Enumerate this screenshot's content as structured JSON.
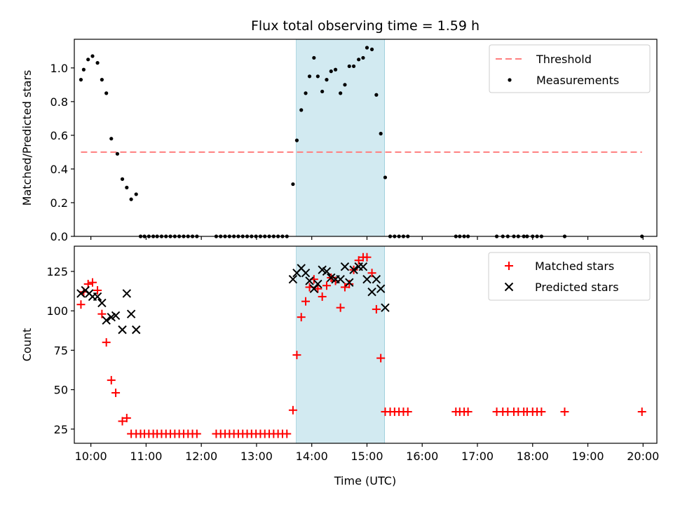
{
  "chart_data": {
    "title": "Flux total observing time = 1.59 h",
    "xlabel": "Time (UTC)",
    "x_unit": "hours UTC",
    "xlim": [
      9.7,
      20.25
    ],
    "xticks": [
      10,
      11,
      12,
      13,
      14,
      15,
      16,
      17,
      18,
      19,
      20
    ],
    "xtick_labels": [
      "10:00",
      "11:00",
      "12:00",
      "13:00",
      "14:00",
      "15:00",
      "16:00",
      "17:00",
      "18:00",
      "19:00",
      "20:00"
    ],
    "shaded_interval": {
      "x": [
        13.72,
        15.32
      ],
      "color": "#add8e6"
    },
    "panels": [
      {
        "type": "scatter",
        "ylabel": "Matched/Predicted stars",
        "ylim": [
          0,
          1.17
        ],
        "yticks": [
          0.0,
          0.2,
          0.4,
          0.6,
          0.8,
          1.0
        ],
        "ytick_labels": [
          "0.0",
          "0.2",
          "0.4",
          "0.6",
          "0.8",
          "1.0"
        ],
        "legend_position": "top-right",
        "threshold": {
          "name": "Threshold",
          "y": 0.5,
          "x": [
            9.82,
            19.98
          ],
          "color": "#ff7f7f",
          "style": "dashed"
        },
        "series": [
          {
            "name": "Measurements",
            "marker": "dot",
            "color": "#000000",
            "points": [
              [
                9.82,
                0.93
              ],
              [
                9.87,
                0.99
              ],
              [
                9.95,
                1.05
              ],
              [
                10.03,
                1.07
              ],
              [
                10.12,
                1.03
              ],
              [
                10.2,
                0.93
              ],
              [
                10.28,
                0.85
              ],
              [
                10.37,
                0.58
              ],
              [
                10.48,
                0.49
              ],
              [
                10.57,
                0.34
              ],
              [
                10.65,
                0.29
              ],
              [
                10.73,
                0.22
              ],
              [
                10.82,
                0.25
              ],
              [
                10.9,
                0.0
              ],
              [
                10.97,
                0.0
              ],
              [
                11.05,
                0.0
              ],
              [
                11.13,
                0.0
              ],
              [
                11.2,
                0.0
              ],
              [
                11.28,
                0.0
              ],
              [
                11.36,
                0.0
              ],
              [
                11.44,
                0.0
              ],
              [
                11.52,
                0.0
              ],
              [
                11.6,
                0.0
              ],
              [
                11.68,
                0.0
              ],
              [
                11.76,
                0.0
              ],
              [
                11.84,
                0.0
              ],
              [
                11.92,
                0.0
              ],
              [
                12.27,
                0.0
              ],
              [
                12.35,
                0.0
              ],
              [
                12.43,
                0.0
              ],
              [
                12.51,
                0.0
              ],
              [
                12.59,
                0.0
              ],
              [
                12.67,
                0.0
              ],
              [
                12.75,
                0.0
              ],
              [
                12.83,
                0.0
              ],
              [
                12.91,
                0.0
              ],
              [
                12.99,
                0.0
              ],
              [
                13.07,
                0.0
              ],
              [
                13.15,
                0.0
              ],
              [
                13.23,
                0.0
              ],
              [
                13.31,
                0.0
              ],
              [
                13.39,
                0.0
              ],
              [
                13.47,
                0.0
              ],
              [
                13.55,
                0.0
              ],
              [
                13.66,
                0.31
              ],
              [
                13.73,
                0.57
              ],
              [
                13.81,
                0.75
              ],
              [
                13.89,
                0.85
              ],
              [
                13.96,
                0.95
              ],
              [
                14.04,
                1.06
              ],
              [
                14.11,
                0.95
              ],
              [
                14.19,
                0.86
              ],
              [
                14.27,
                0.93
              ],
              [
                14.35,
                0.98
              ],
              [
                14.43,
                0.99
              ],
              [
                14.52,
                0.85
              ],
              [
                14.6,
                0.9
              ],
              [
                14.68,
                1.01
              ],
              [
                14.76,
                1.01
              ],
              [
                14.85,
                1.05
              ],
              [
                14.93,
                1.06
              ],
              [
                15.0,
                1.12
              ],
              [
                15.09,
                1.11
              ],
              [
                15.17,
                0.84
              ],
              [
                15.25,
                0.61
              ],
              [
                15.33,
                0.35
              ],
              [
                15.42,
                0.0
              ],
              [
                15.5,
                0.0
              ],
              [
                15.58,
                0.0
              ],
              [
                15.66,
                0.0
              ],
              [
                15.74,
                0.0
              ],
              [
                16.61,
                0.0
              ],
              [
                16.68,
                0.0
              ],
              [
                16.76,
                0.0
              ],
              [
                16.83,
                0.0
              ],
              [
                17.35,
                0.0
              ],
              [
                17.46,
                0.0
              ],
              [
                17.55,
                0.0
              ],
              [
                17.66,
                0.0
              ],
              [
                17.74,
                0.0
              ],
              [
                17.84,
                0.0
              ],
              [
                17.9,
                0.0
              ],
              [
                18.0,
                0.0
              ],
              [
                18.08,
                0.0
              ],
              [
                18.16,
                0.0
              ],
              [
                18.58,
                0.0
              ],
              [
                19.98,
                0.0
              ]
            ]
          }
        ]
      },
      {
        "type": "scatter",
        "ylabel": "Count",
        "ylim": [
          16,
          141
        ],
        "yticks": [
          25,
          50,
          75,
          100,
          125
        ],
        "ytick_labels": [
          "25",
          "50",
          "75",
          "100",
          "125"
        ],
        "legend_position": "top-right",
        "series": [
          {
            "name": "Matched stars",
            "marker": "plus",
            "color": "#ff0000",
            "points": [
              [
                9.82,
                104
              ],
              [
                9.87,
                112
              ],
              [
                9.95,
                117
              ],
              [
                10.03,
                118
              ],
              [
                10.12,
                113
              ],
              [
                10.2,
                98
              ],
              [
                10.28,
                80
              ],
              [
                10.37,
                56
              ],
              [
                10.45,
                48
              ],
              [
                10.57,
                30
              ],
              [
                10.65,
                32
              ],
              [
                10.73,
                22
              ],
              [
                10.82,
                22
              ],
              [
                10.9,
                22
              ],
              [
                10.97,
                22
              ],
              [
                11.05,
                22
              ],
              [
                11.13,
                22
              ],
              [
                11.2,
                22
              ],
              [
                11.28,
                22
              ],
              [
                11.36,
                22
              ],
              [
                11.44,
                22
              ],
              [
                11.52,
                22
              ],
              [
                11.6,
                22
              ],
              [
                11.68,
                22
              ],
              [
                11.76,
                22
              ],
              [
                11.84,
                22
              ],
              [
                11.92,
                22
              ],
              [
                12.27,
                22
              ],
              [
                12.35,
                22
              ],
              [
                12.43,
                22
              ],
              [
                12.51,
                22
              ],
              [
                12.59,
                22
              ],
              [
                12.67,
                22
              ],
              [
                12.75,
                22
              ],
              [
                12.83,
                22
              ],
              [
                12.91,
                22
              ],
              [
                12.99,
                22
              ],
              [
                13.07,
                22
              ],
              [
                13.15,
                22
              ],
              [
                13.23,
                22
              ],
              [
                13.31,
                22
              ],
              [
                13.39,
                22
              ],
              [
                13.47,
                22
              ],
              [
                13.55,
                22
              ],
              [
                13.66,
                37
              ],
              [
                13.73,
                72
              ],
              [
                13.81,
                96
              ],
              [
                13.89,
                106
              ],
              [
                13.96,
                115
              ],
              [
                14.04,
                120
              ],
              [
                14.11,
                114
              ],
              [
                14.19,
                109
              ],
              [
                14.27,
                116
              ],
              [
                14.35,
                121
              ],
              [
                14.43,
                119
              ],
              [
                14.52,
                102
              ],
              [
                14.6,
                115
              ],
              [
                14.68,
                117
              ],
              [
                14.76,
                126
              ],
              [
                14.85,
                132
              ],
              [
                14.93,
                134
              ],
              [
                15.0,
                134
              ],
              [
                15.09,
                124
              ],
              [
                15.17,
                101
              ],
              [
                15.25,
                70
              ],
              [
                15.33,
                36
              ],
              [
                15.42,
                36
              ],
              [
                15.5,
                36
              ],
              [
                15.58,
                36
              ],
              [
                15.66,
                36
              ],
              [
                15.74,
                36
              ],
              [
                16.61,
                36
              ],
              [
                16.68,
                36
              ],
              [
                16.76,
                36
              ],
              [
                16.83,
                36
              ],
              [
                17.35,
                36
              ],
              [
                17.46,
                36
              ],
              [
                17.55,
                36
              ],
              [
                17.66,
                36
              ],
              [
                17.74,
                36
              ],
              [
                17.84,
                36
              ],
              [
                17.9,
                36
              ],
              [
                18.0,
                36
              ],
              [
                18.08,
                36
              ],
              [
                18.16,
                36
              ],
              [
                18.58,
                36
              ],
              [
                19.98,
                36
              ]
            ]
          },
          {
            "name": "Predicted stars",
            "marker": "x",
            "color": "#000000",
            "points": [
              [
                9.82,
                111
              ],
              [
                9.9,
                113
              ],
              [
                9.97,
                111
              ],
              [
                10.03,
                109
              ],
              [
                10.12,
                109
              ],
              [
                10.2,
                105
              ],
              [
                10.28,
                94
              ],
              [
                10.37,
                96
              ],
              [
                10.45,
                97
              ],
              [
                10.57,
                88
              ],
              [
                10.65,
                111
              ],
              [
                10.73,
                98
              ],
              [
                10.82,
                88
              ],
              [
                13.66,
                120
              ],
              [
                13.73,
                124
              ],
              [
                13.81,
                127
              ],
              [
                13.89,
                124
              ],
              [
                13.96,
                119
              ],
              [
                14.04,
                114
              ],
              [
                14.11,
                117
              ],
              [
                14.19,
                126
              ],
              [
                14.27,
                125
              ],
              [
                14.35,
                121
              ],
              [
                14.43,
                120
              ],
              [
                14.52,
                120
              ],
              [
                14.6,
                128
              ],
              [
                14.68,
                118
              ],
              [
                14.76,
                126
              ],
              [
                14.85,
                128
              ],
              [
                14.93,
                128
              ],
              [
                15.0,
                120
              ],
              [
                15.09,
                112
              ],
              [
                15.17,
                120
              ],
              [
                15.25,
                114
              ],
              [
                15.33,
                102
              ]
            ]
          }
        ]
      }
    ]
  }
}
